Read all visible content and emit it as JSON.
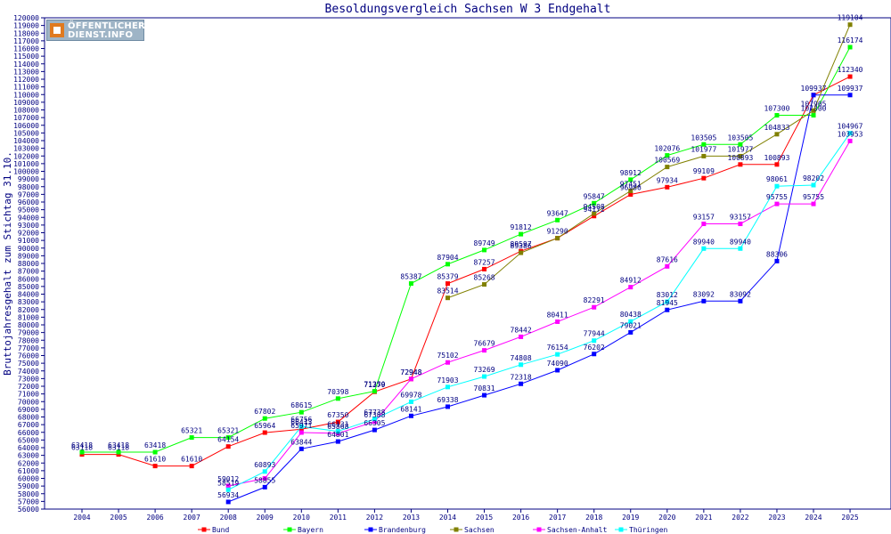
{
  "logo": {
    "line1": "ÖFFENTLICHER",
    "line2": "DIENST.INFO"
  },
  "chart_data": {
    "type": "line",
    "title": "Besoldungsvergleich Sachsen W 3 Endgehalt",
    "xlabel": "",
    "ylabel": "Bruttojahresgehalt zum Stichtag 31.10.",
    "ylim": [
      56000,
      120000
    ],
    "y_tick_step": 1000,
    "grid": false,
    "legend_position": "bottom",
    "categories": [
      "2004",
      "2005",
      "2006",
      "2007",
      "2008",
      "2009",
      "2010",
      "2011",
      "2012",
      "2013",
      "2014",
      "2015",
      "2016",
      "2017",
      "2018",
      "2019",
      "2020",
      "2021",
      "2022",
      "2023",
      "2024",
      "2025"
    ],
    "series": [
      {
        "name": "Bund",
        "color": "#ff0000",
        "values": [
          63118,
          63118,
          61610,
          61610,
          64154,
          65964,
          66413,
          67350,
          71279,
          72948,
          85379,
          87257,
          89597,
          91290,
          94172,
          96986,
          97934,
          99109,
          100893,
          100893,
          109937,
          112340
        ]
      },
      {
        "name": "Bayern",
        "color": "#00ff00",
        "values": [
          63418,
          63418,
          63418,
          65321,
          65321,
          67802,
          68615,
          70398,
          71350,
          85387,
          87904,
          89749,
          91812,
          93647,
          95847,
          98912,
          102076,
          103505,
          103505,
          107300,
          107300,
          116174
        ]
      },
      {
        "name": "Brandenburg",
        "color": "#0000ff",
        "values": [
          null,
          null,
          null,
          null,
          56934,
          58855,
          63844,
          64801,
          66305,
          68141,
          69338,
          70831,
          72318,
          74090,
          76202,
          79021,
          81945,
          83092,
          83092,
          88306,
          109937,
          109937
        ]
      },
      {
        "name": "Sachsen",
        "color": "#808000",
        "values": [
          null,
          null,
          null,
          null,
          null,
          null,
          null,
          null,
          null,
          null,
          83514,
          85268,
          89386,
          91290,
          94508,
          97451,
          100569,
          101977,
          101977,
          104833,
          107905,
          119104
        ]
      },
      {
        "name": "Sachsen-Anhalt",
        "color": "#ff00ff",
        "values": [
          null,
          null,
          null,
          null,
          59012,
          60000,
          65971,
          65868,
          67388,
          72948,
          75102,
          76679,
          78442,
          80411,
          82291,
          84912,
          87616,
          93157,
          93157,
          95755,
          95755,
          103953
        ]
      },
      {
        "name": "Thüringen",
        "color": "#00ffff",
        "values": [
          null,
          null,
          null,
          null,
          58519,
          60893,
          66756,
          66131,
          67738,
          69978,
          71903,
          73269,
          74808,
          76154,
          77944,
          80438,
          83012,
          89940,
          89940,
          98061,
          98202,
          104967
        ]
      }
    ],
    "data_labels": [
      {
        "series": "Bund",
        "year": "2004",
        "text": "63118"
      },
      {
        "series": "Bund",
        "year": "2005",
        "text": "63118"
      },
      {
        "series": "Bund",
        "year": "2006",
        "text": "61610"
      },
      {
        "series": "Bund",
        "year": "2007",
        "text": "61610"
      },
      {
        "series": "Bund",
        "year": "2008",
        "text": "64154"
      },
      {
        "series": "Bund",
        "year": "2009",
        "text": "65964"
      },
      {
        "series": "Bund",
        "year": "2010",
        "text": "66413"
      },
      {
        "series": "Bund",
        "year": "2011",
        "text": "67350"
      },
      {
        "series": "Bund",
        "year": "2012",
        "text": "71279"
      },
      {
        "series": "Bund",
        "year": "2013",
        "text": "72948"
      },
      {
        "series": "Bund",
        "year": "2014",
        "text": "85379"
      },
      {
        "series": "Bund",
        "year": "2015",
        "text": "87257"
      },
      {
        "series": "Bund",
        "year": "2016",
        "text": "89597"
      },
      {
        "series": "Bund",
        "year": "2018",
        "text": "94172"
      },
      {
        "series": "Bund",
        "year": "2019",
        "text": "96986"
      },
      {
        "series": "Bund",
        "year": "2020",
        "text": "97934"
      },
      {
        "series": "Bund",
        "year": "2021",
        "text": "99109"
      },
      {
        "series": "Bund",
        "year": "2022",
        "text": "100893"
      },
      {
        "series": "Bund",
        "year": "2023",
        "text": "100893"
      },
      {
        "series": "Bund",
        "year": "2024",
        "text": "109937"
      },
      {
        "series": "Bund",
        "year": "2025",
        "text": "112340"
      },
      {
        "series": "Bayern",
        "year": "2004",
        "text": "63418"
      },
      {
        "series": "Bayern",
        "year": "2005",
        "text": "63418"
      },
      {
        "series": "Bayern",
        "year": "2006",
        "text": "63418"
      },
      {
        "series": "Bayern",
        "year": "2007",
        "text": "65321"
      },
      {
        "series": "Bayern",
        "year": "2008",
        "text": "65321"
      },
      {
        "series": "Bayern",
        "year": "2009",
        "text": "67802"
      },
      {
        "series": "Bayern",
        "year": "2010",
        "text": "68615"
      },
      {
        "series": "Bayern",
        "year": "2011",
        "text": "70398"
      },
      {
        "series": "Bayern",
        "year": "2012",
        "text": "71350"
      },
      {
        "series": "Bayern",
        "year": "2013",
        "text": "85387"
      },
      {
        "series": "Bayern",
        "year": "2014",
        "text": "87904"
      },
      {
        "series": "Bayern",
        "year": "2015",
        "text": "89749"
      },
      {
        "series": "Bayern",
        "year": "2016",
        "text": "91812"
      },
      {
        "series": "Bayern",
        "year": "2017",
        "text": "93647"
      },
      {
        "series": "Bayern",
        "year": "2018",
        "text": "95847"
      },
      {
        "series": "Bayern",
        "year": "2019",
        "text": "98912"
      },
      {
        "series": "Bayern",
        "year": "2020",
        "text": "102076"
      },
      {
        "series": "Bayern",
        "year": "2021",
        "text": "103505"
      },
      {
        "series": "Bayern",
        "year": "2022",
        "text": "103505"
      },
      {
        "series": "Bayern",
        "year": "2023",
        "text": "107300"
      },
      {
        "series": "Bayern",
        "year": "2024",
        "text": "107300"
      },
      {
        "series": "Bayern",
        "year": "2025",
        "text": "116174"
      },
      {
        "series": "Brandenburg",
        "year": "2008",
        "text": "56934"
      },
      {
        "series": "Brandenburg",
        "year": "2009",
        "text": "58855"
      },
      {
        "series": "Brandenburg",
        "year": "2010",
        "text": "63844"
      },
      {
        "series": "Brandenburg",
        "year": "2011",
        "text": "64801"
      },
      {
        "series": "Brandenburg",
        "year": "2012",
        "text": "66305"
      },
      {
        "series": "Brandenburg",
        "year": "2013",
        "text": "68141"
      },
      {
        "series": "Brandenburg",
        "year": "2014",
        "text": "69338"
      },
      {
        "series": "Brandenburg",
        "year": "2015",
        "text": "70831"
      },
      {
        "series": "Brandenburg",
        "year": "2016",
        "text": "72318"
      },
      {
        "series": "Brandenburg",
        "year": "2017",
        "text": "74090"
      },
      {
        "series": "Brandenburg",
        "year": "2018",
        "text": "76202"
      },
      {
        "series": "Brandenburg",
        "year": "2019",
        "text": "79021"
      },
      {
        "series": "Brandenburg",
        "year": "2020",
        "text": "81945"
      },
      {
        "series": "Brandenburg",
        "year": "2021",
        "text": "83092"
      },
      {
        "series": "Brandenburg",
        "year": "2022",
        "text": "83092"
      },
      {
        "series": "Brandenburg",
        "year": "2023",
        "text": "88306"
      },
      {
        "series": "Brandenburg",
        "year": "2025",
        "text": "109937"
      },
      {
        "series": "Sachsen",
        "year": "2014",
        "text": "83514"
      },
      {
        "series": "Sachsen",
        "year": "2015",
        "text": "85268"
      },
      {
        "series": "Sachsen",
        "year": "2016",
        "text": "89386"
      },
      {
        "series": "Sachsen",
        "year": "2017",
        "text": "91290"
      },
      {
        "series": "Sachsen",
        "year": "2018",
        "text": "94508"
      },
      {
        "series": "Sachsen",
        "year": "2019",
        "text": "97451"
      },
      {
        "series": "Sachsen",
        "year": "2020",
        "text": "100569"
      },
      {
        "series": "Sachsen",
        "year": "2021",
        "text": "101977"
      },
      {
        "series": "Sachsen",
        "year": "2022",
        "text": "101977"
      },
      {
        "series": "Sachsen",
        "year": "2023",
        "text": "104833"
      },
      {
        "series": "Sachsen",
        "year": "2024",
        "text": "107905"
      },
      {
        "series": "Sachsen",
        "year": "2025",
        "text": "119104"
      },
      {
        "series": "Sachsen-Anhalt",
        "year": "2008",
        "text": "59012"
      },
      {
        "series": "Sachsen-Anhalt",
        "year": "2010",
        "text": "65971"
      },
      {
        "series": "Sachsen-Anhalt",
        "year": "2011",
        "text": "65868"
      },
      {
        "series": "Sachsen-Anhalt",
        "year": "2012",
        "text": "67388"
      },
      {
        "series": "Sachsen-Anhalt",
        "year": "2013",
        "text": "72948"
      },
      {
        "series": "Sachsen-Anhalt",
        "year": "2014",
        "text": "75102"
      },
      {
        "series": "Sachsen-Anhalt",
        "year": "2015",
        "text": "76679"
      },
      {
        "series": "Sachsen-Anhalt",
        "year": "2016",
        "text": "78442"
      },
      {
        "series": "Sachsen-Anhalt",
        "year": "2017",
        "text": "80411"
      },
      {
        "series": "Sachsen-Anhalt",
        "year": "2018",
        "text": "82291"
      },
      {
        "series": "Sachsen-Anhalt",
        "year": "2019",
        "text": "84912"
      },
      {
        "series": "Sachsen-Anhalt",
        "year": "2020",
        "text": "87616"
      },
      {
        "series": "Sachsen-Anhalt",
        "year": "2021",
        "text": "93157"
      },
      {
        "series": "Sachsen-Anhalt",
        "year": "2022",
        "text": "93157"
      },
      {
        "series": "Sachsen-Anhalt",
        "year": "2023",
        "text": "95755"
      },
      {
        "series": "Sachsen-Anhalt",
        "year": "2024",
        "text": "95755"
      },
      {
        "series": "Sachsen-Anhalt",
        "year": "2025",
        "text": "103953"
      },
      {
        "series": "Thüringen",
        "year": "2008",
        "text": "58519"
      },
      {
        "series": "Thüringen",
        "year": "2009",
        "text": "60893"
      },
      {
        "series": "Thüringen",
        "year": "2010",
        "text": "66756"
      },
      {
        "series": "Thüringen",
        "year": "2011",
        "text": "66131"
      },
      {
        "series": "Thüringen",
        "year": "2012",
        "text": "67738"
      },
      {
        "series": "Thüringen",
        "year": "2013",
        "text": "69978"
      },
      {
        "series": "Thüringen",
        "year": "2014",
        "text": "71903"
      },
      {
        "series": "Thüringen",
        "year": "2015",
        "text": "73269"
      },
      {
        "series": "Thüringen",
        "year": "2016",
        "text": "74808"
      },
      {
        "series": "Thüringen",
        "year": "2017",
        "text": "76154"
      },
      {
        "series": "Thüringen",
        "year": "2018",
        "text": "77944"
      },
      {
        "series": "Thüringen",
        "year": "2019",
        "text": "80438"
      },
      {
        "series": "Thüringen",
        "year": "2020",
        "text": "83012"
      },
      {
        "series": "Thüringen",
        "year": "2021",
        "text": "89940"
      },
      {
        "series": "Thüringen",
        "year": "2022",
        "text": "89940"
      },
      {
        "series": "Thüringen",
        "year": "2023",
        "text": "98061"
      },
      {
        "series": "Thüringen",
        "year": "2024",
        "text": "98202"
      },
      {
        "series": "Thüringen",
        "year": "2025",
        "text": "104967"
      }
    ]
  }
}
